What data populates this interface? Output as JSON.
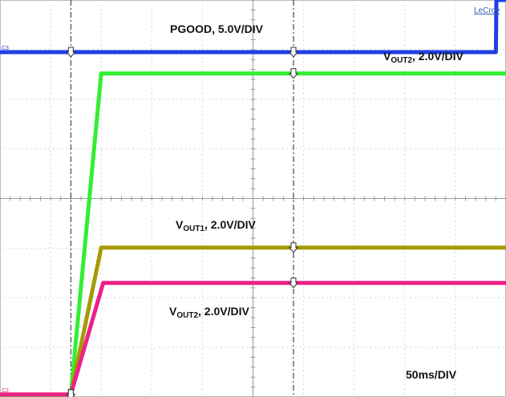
{
  "chart_data": {
    "type": "line",
    "title": "",
    "xlabel": "",
    "ylabel": "",
    "grid": true,
    "grid_divisions": {
      "x": 10,
      "y": 8
    },
    "time_scale": "50ms/DIV",
    "x_unit": "ms",
    "xlim": [
      0,
      500
    ],
    "ylim_div": [
      0,
      8
    ],
    "series": [
      {
        "name": "PGOOD, 5.0V/DIV",
        "color": "#1f3fe6",
        "channel_marker": "C3",
        "x": [
          0,
          490,
          490.5,
          500
        ],
        "y_div": [
          6.95,
          6.95,
          8.0,
          8.0
        ]
      },
      {
        "name": "VOUT2, 2.0V/DIV",
        "color": "#33ee33",
        "x": [
          0,
          70,
          100,
          500
        ],
        "y_div": [
          0.0,
          0.05,
          6.52,
          6.52
        ]
      },
      {
        "name": "VOUT1, 2.0V/DIV",
        "color": "#a59a00",
        "x": [
          0,
          70,
          100,
          500
        ],
        "y_div": [
          0.05,
          0.05,
          3.01,
          3.01
        ]
      },
      {
        "name": "VOUT2, 2.0V/DIV",
        "color": "#ee1f88",
        "channel_marker": "C2",
        "x": [
          0,
          70,
          102,
          500
        ],
        "y_div": [
          0.05,
          0.05,
          2.3,
          2.3
        ]
      }
    ],
    "cursors_ms": [
      70,
      290
    ],
    "labels": {
      "pgood": {
        "prefix": "PGOOD, 5.0V/DIV",
        "sub": ""
      },
      "vout2_top": {
        "prefix": "V",
        "sub": "OUT2",
        "suffix": ", 2.0V/DIV"
      },
      "vout1": {
        "prefix": "V",
        "sub": "OUT1",
        "suffix": ", 2.0V/DIV"
      },
      "vout2_bottom": {
        "prefix": "V",
        "sub": "OUT2",
        "suffix": ", 2.0V/DIV"
      },
      "timebase": "50ms/DIV"
    },
    "watermark": "LeCroy"
  }
}
